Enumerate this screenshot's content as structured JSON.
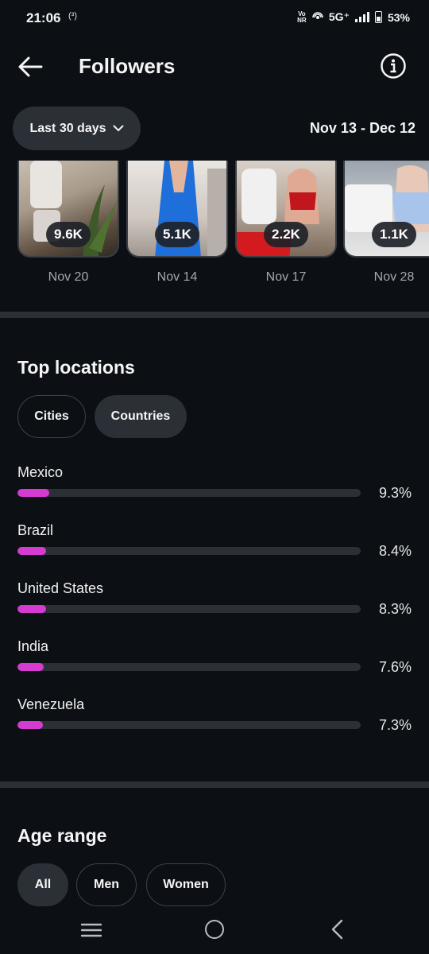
{
  "status": {
    "time": "21:06",
    "left_icon": "(³)",
    "vonr": "Vo NR",
    "network": "5G⁺",
    "battery": "53%"
  },
  "header": {
    "title": "Followers"
  },
  "filters": {
    "range_label": "Last 30 days",
    "date_range": "Nov 13 - Dec 12"
  },
  "thumbnails": [
    {
      "count": "9.6K",
      "date": "Nov 20"
    },
    {
      "count": "5.1K",
      "date": "Nov 14"
    },
    {
      "count": "2.2K",
      "date": "Nov 17"
    },
    {
      "count": "1.1K",
      "date": "Nov 28"
    }
  ],
  "top_locations": {
    "title": "Top locations",
    "chips": [
      "Cities",
      "Countries"
    ],
    "selected": "Countries",
    "items": [
      {
        "name": "Mexico",
        "pct": "9.3%",
        "value": 9.3
      },
      {
        "name": "Brazil",
        "pct": "8.4%",
        "value": 8.4
      },
      {
        "name": "United States",
        "pct": "8.3%",
        "value": 8.3
      },
      {
        "name": "India",
        "pct": "7.6%",
        "value": 7.6
      },
      {
        "name": "Venezuela",
        "pct": "7.3%",
        "value": 7.3
      }
    ],
    "bar_color": "#d63bd1"
  },
  "age_range": {
    "title": "Age range",
    "chips": [
      "All",
      "Men",
      "Women"
    ],
    "selected": "All"
  },
  "icons": {
    "back": "arrow-left-icon",
    "info": "info-icon",
    "chevron": "chevron-down-icon",
    "nav_menu": "recent-apps-icon",
    "nav_home": "home-circle-icon",
    "nav_back": "nav-back-icon"
  }
}
